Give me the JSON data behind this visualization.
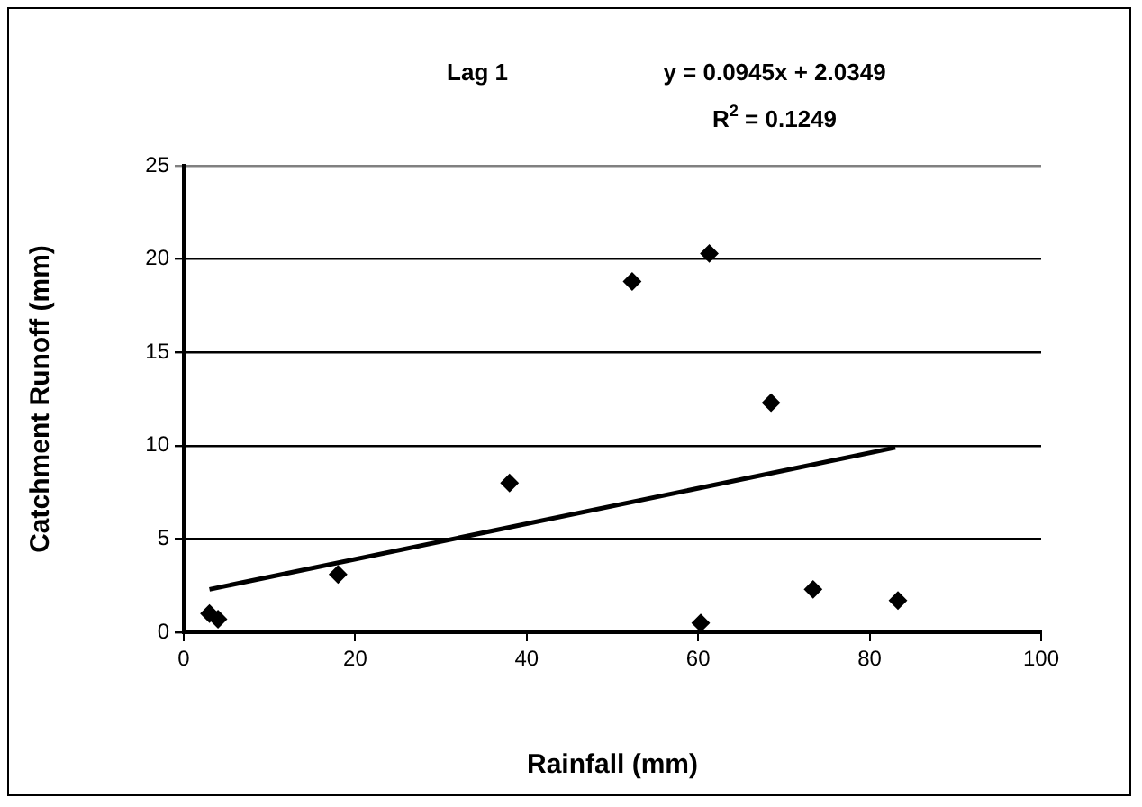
{
  "chart_data": {
    "type": "scatter",
    "title": "Lag 1",
    "annotations": [
      "y = 0.0945x + 2.0349",
      "R$^{2}$ = 0.1249"
    ],
    "xlabel": "Rainfall (mm)",
    "ylabel": "Catchment Runoff (mm)",
    "series": [
      {
        "color": "#000000",
        "x": [
          3,
          4,
          18,
          38,
          52.3,
          61.3,
          60.3,
          68.5,
          73.4,
          83.3
        ],
        "values": [
          1.0,
          0.7,
          3.1,
          8.0,
          18.8,
          20.3,
          0.5,
          12.3,
          2.3,
          1.7
        ]
      },
      {
        "type": "line",
        "color": "#000000",
        "marker": "none",
        "x": [
          3,
          83
        ],
        "values": [
          2.3,
          9.9
        ]
      }
    ],
    "xlim": [
      0,
      100
    ],
    "xticks": [
      0,
      20,
      40,
      60,
      80,
      100
    ],
    "ylim": [
      0,
      25
    ],
    "yticks": [
      0,
      5,
      10,
      15,
      20,
      25
    ],
    "grid": "y",
    "marker": "diamond",
    "legend": false
  }
}
